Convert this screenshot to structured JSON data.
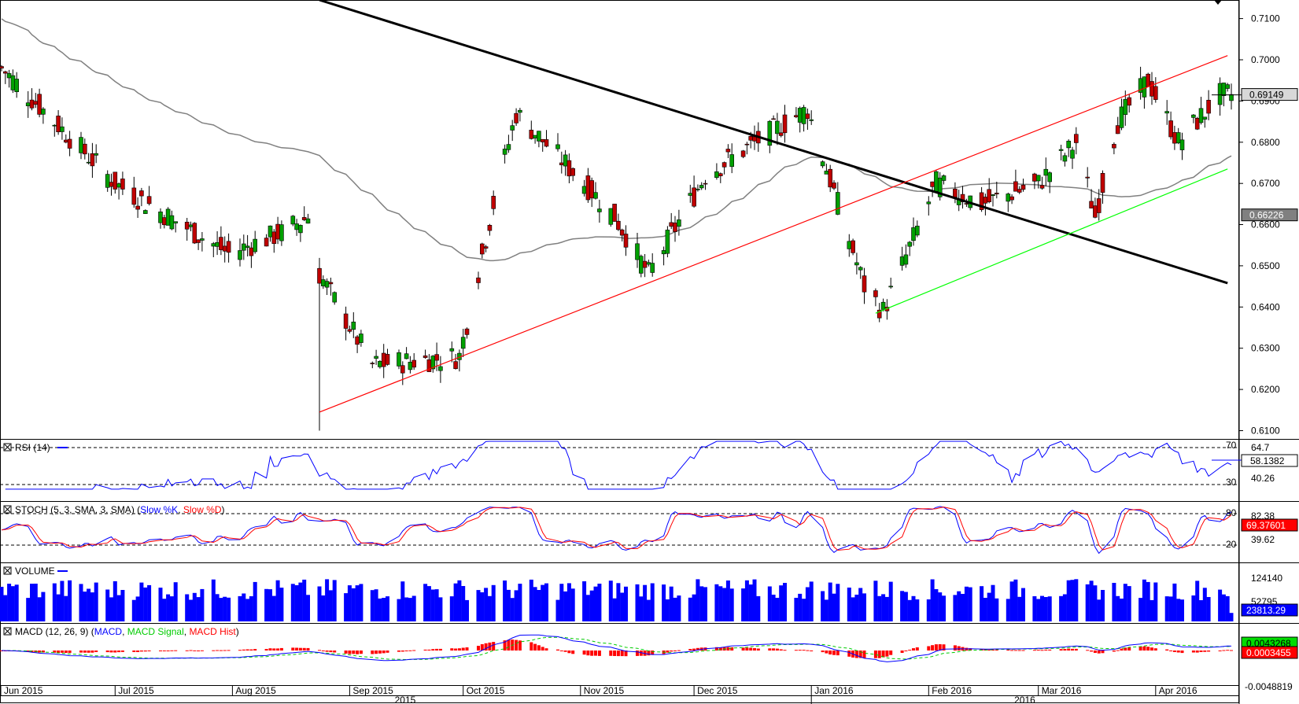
{
  "chart_data": {
    "type": "candlestick",
    "title": "",
    "price_axis": {
      "ticks": [
        "0.7100",
        "0.7000",
        "0.6900",
        "0.6800",
        "0.6700",
        "0.6600",
        "0.6500",
        "0.6400",
        "0.6300",
        "0.6200",
        "0.6100"
      ],
      "range": [
        0.608,
        0.7145
      ],
      "current_label": "0.69149",
      "ma_label": "0.66226"
    },
    "time_axis": {
      "months": [
        "Jun 2015",
        "Jul 2015",
        "Aug 2015",
        "Sep 2015",
        "Oct 2015",
        "Nov 2015",
        "Dec 2015",
        "Jan 2016",
        "Feb 2016",
        "Mar 2016",
        "Apr 2016"
      ],
      "years": [
        "2015",
        "2016"
      ]
    },
    "candles_ohlc_keypoints": [
      {
        "date": "2015-06-01",
        "close": 0.698
      },
      {
        "date": "2015-06-15",
        "close": 0.685
      },
      {
        "date": "2015-07-01",
        "close": 0.67
      },
      {
        "date": "2015-07-15",
        "close": 0.662
      },
      {
        "date": "2015-07-31",
        "close": 0.653
      },
      {
        "date": "2015-08-14",
        "close": 0.658
      },
      {
        "date": "2015-08-21",
        "close": 0.662
      },
      {
        "date": "2015-08-24",
        "close": 0.648,
        "low": 0.61
      },
      {
        "date": "2015-09-07",
        "close": 0.626
      },
      {
        "date": "2015-09-30",
        "close": 0.628
      },
      {
        "date": "2015-10-09",
        "close": 0.665
      },
      {
        "date": "2015-10-15",
        "close": 0.687
      },
      {
        "date": "2015-11-02",
        "close": 0.67
      },
      {
        "date": "2015-11-10",
        "close": 0.662
      },
      {
        "date": "2015-11-19",
        "close": 0.648
      },
      {
        "date": "2015-12-04",
        "close": 0.672
      },
      {
        "date": "2015-12-24",
        "close": 0.684
      },
      {
        "date": "2015-12-31",
        "close": 0.688
      },
      {
        "date": "2016-01-08",
        "close": 0.665
      },
      {
        "date": "2016-01-15",
        "close": 0.645
      },
      {
        "date": "2016-01-20",
        "close": 0.639
      },
      {
        "date": "2016-02-03",
        "close": 0.67
      },
      {
        "date": "2016-02-15",
        "close": 0.665
      },
      {
        "date": "2016-03-01",
        "close": 0.67
      },
      {
        "date": "2016-03-11",
        "close": 0.68
      },
      {
        "date": "2016-03-16",
        "close": 0.662
      },
      {
        "date": "2016-03-22",
        "close": 0.685
      },
      {
        "date": "2016-03-30",
        "close": 0.695
      },
      {
        "date": "2016-04-07",
        "close": 0.68
      },
      {
        "date": "2016-04-18",
        "close": 0.6915
      }
    ],
    "indicators": {
      "rsi": {
        "title": "RSI (14)",
        "levels": [
          "70",
          "30"
        ],
        "value_label": "58.1382",
        "other_label": "40.26",
        "top_label": "64.7"
      },
      "stoch": {
        "title_prefix": "STOCH (5, 3, SMA, 3, SMA)",
        "k_name": "Slow %K",
        "d_name": "Slow %D",
        "levels": [
          "80",
          "20"
        ],
        "value_label": "69.37601",
        "other_label": "39.62",
        "top_label": "82.38"
      },
      "volume": {
        "title": "VOLUME",
        "value_label": "23813.29",
        "ticks": [
          "124140",
          "52795"
        ]
      },
      "macd": {
        "title_prefix": "MACD (12, 26, 9)",
        "macd_name": "MACD",
        "signal_name": "MACD Signal",
        "hist_name": "MACD Hist",
        "value_label": "0.0043268",
        "hist_label": "0.0003455",
        "bottom_label": "-0.0048819"
      }
    },
    "trendlines": [
      {
        "name": "",
        "color": "#000000",
        "from": {
          "date": "2015-08-24",
          "price": 0.7145
        },
        "to": {
          "date": "2016-04-20",
          "price": 0.6458
        }
      },
      {
        "name": "",
        "color": "#ff0000",
        "from": {
          "date": "2015-08-24",
          "price": 0.6145
        },
        "to": {
          "date": "2016-04-20",
          "price": 0.701
        }
      },
      {
        "name": "",
        "color": "#00ff00",
        "from": {
          "date": "2016-01-18",
          "price": 0.6385
        },
        "to": {
          "date": "2016-04-20",
          "price": 0.6735
        }
      }
    ],
    "colors": {
      "up": "#00a000",
      "down": "#c00000",
      "ma": "#808080",
      "rsi": "#0000ff",
      "stoch_k": "#0000ff",
      "stoch_d": "#ff0000",
      "volume": "#0000ff",
      "macd": "#0000ff",
      "signal": "#00cc00",
      "hist": "#ff0000"
    }
  }
}
